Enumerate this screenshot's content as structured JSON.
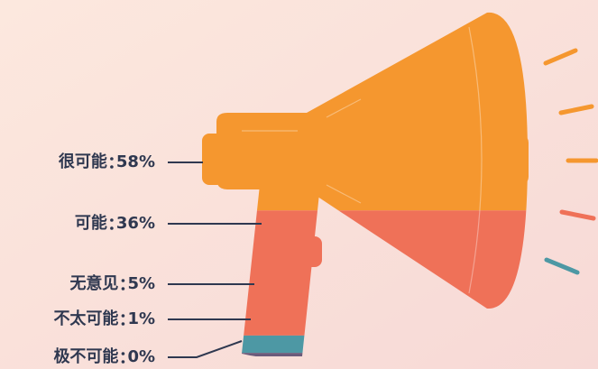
{
  "chart_data": {
    "type": "megaphone-stack",
    "categories": [
      "很可能",
      "可能",
      "无意见",
      "不太可能",
      "极不可能"
    ],
    "values": [
      58,
      36,
      5,
      1,
      0
    ],
    "value_labels": [
      "58%",
      "36%",
      "5%",
      "1%",
      "0%"
    ],
    "colors": [
      "#f5972f",
      "#ef7158",
      "#4d98a4",
      "#6b5b7b",
      "#b8a3d6"
    ]
  }
}
